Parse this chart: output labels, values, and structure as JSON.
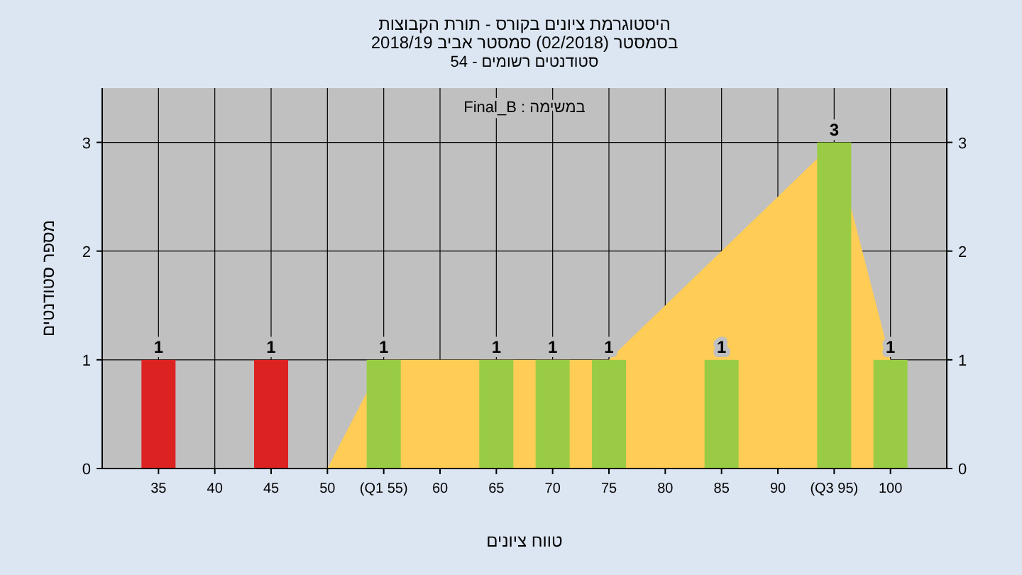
{
  "chart_data": {
    "type": "bar",
    "title": "היסטוגרמת ציונים בקורס - תורת הקבוצות",
    "subtitle": "בסמסטר (02/2018) סמסטר אביב 2018/19",
    "annotations": [
      "סטודנטים רשומים - 54",
      "במשימה : Final_B"
    ],
    "xlabel": "טווח ציונים",
    "ylabel": "מספר סטודנטים",
    "xlim": [
      30,
      105
    ],
    "xticks": [
      35,
      40,
      45,
      50,
      {
        "value": 55,
        "label": "(Q1 55)"
      },
      60,
      65,
      70,
      75,
      80,
      85,
      90,
      {
        "value": 95,
        "label": "(Q3 95)"
      },
      100
    ],
    "ylim": [
      0,
      3.5
    ],
    "yticks": [
      0,
      1,
      2,
      3
    ],
    "y2lim": [
      0,
      3.5
    ],
    "y2ticks": [
      0,
      1,
      2,
      3
    ],
    "grid": true,
    "series": [
      {
        "type": "area",
        "color": "#ffcc55",
        "x": [
          50,
          55,
          75,
          95,
          100
        ],
        "values": [
          0,
          1,
          1,
          3,
          1
        ]
      },
      {
        "x": [
          35,
          45,
          55,
          65,
          70,
          75,
          85,
          95,
          100
        ],
        "values": [
          1,
          1,
          1,
          1,
          1,
          1,
          1,
          3,
          1
        ],
        "value_labels": [
          "1",
          "1",
          "1",
          "1",
          "1",
          "1",
          "1",
          "3",
          "1"
        ],
        "colors": [
          "#dd2222",
          "#dd2222",
          "#99cc44",
          "#99cc44",
          "#99cc44",
          "#99cc44",
          "#99cc44",
          "#99cc44",
          "#99cc44"
        ]
      }
    ]
  }
}
